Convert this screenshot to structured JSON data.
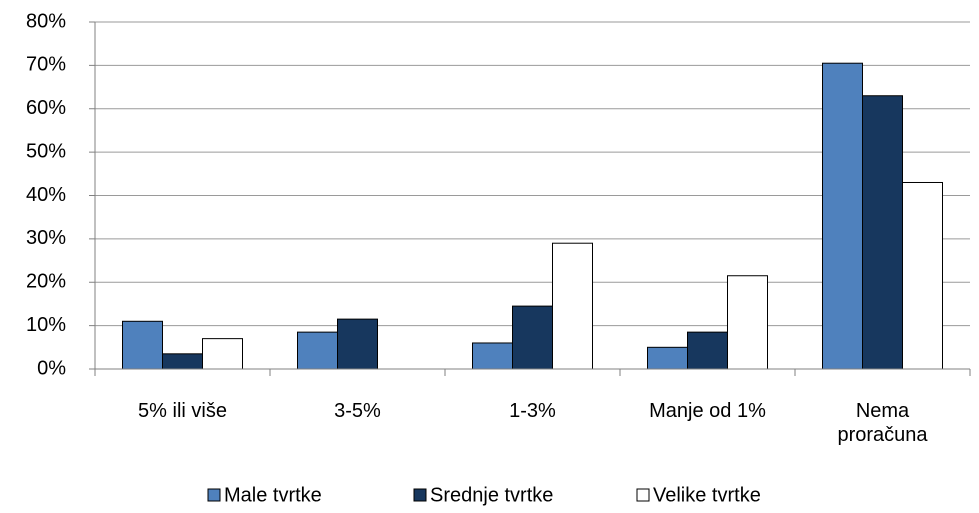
{
  "chart_data": {
    "type": "bar",
    "categories": [
      "5% ili više",
      "3-5%",
      "1-3%",
      "Manje od 1%",
      "Nema proračuna"
    ],
    "series": [
      {
        "name": "Male tvrtke",
        "color": "#4f81bd",
        "values": [
          11,
          8.5,
          6,
          5,
          70.5
        ]
      },
      {
        "name": "Srednje tvrtke",
        "color": "#17375e",
        "values": [
          3.5,
          11.5,
          14.5,
          8.5,
          63
        ]
      },
      {
        "name": "Velike tvrtke",
        "color": "#ffffff",
        "values": [
          7,
          0,
          29,
          21.5,
          43
        ]
      }
    ],
    "ylim": [
      0,
      80
    ],
    "yticks": [
      {
        "value": 0,
        "label": "0%"
      },
      {
        "value": 10,
        "label": "10%"
      },
      {
        "value": 20,
        "label": "20%"
      },
      {
        "value": 30,
        "label": "30%"
      },
      {
        "value": 40,
        "label": "40%"
      },
      {
        "value": 50,
        "label": "50%"
      },
      {
        "value": 60,
        "label": "60%"
      },
      {
        "value": 70,
        "label": "70%"
      },
      {
        "value": 80,
        "label": "80%"
      }
    ],
    "grid": true,
    "legend": "bottom"
  }
}
